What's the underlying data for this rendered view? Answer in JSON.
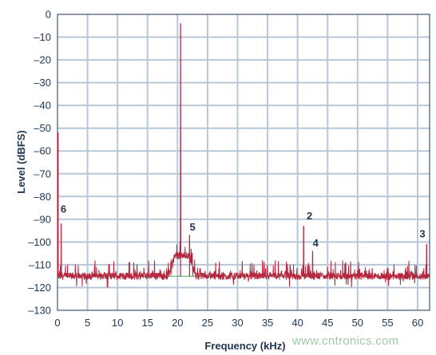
{
  "chart_data": {
    "type": "line",
    "title": "",
    "xlabel": "Frequency (kHz)",
    "ylabel": "Level (dBFS)",
    "xlim": [
      0,
      62
    ],
    "ylim": [
      -130,
      0
    ],
    "x_ticks": [
      0,
      5,
      10,
      15,
      20,
      25,
      30,
      35,
      40,
      45,
      50,
      55,
      60
    ],
    "x_tick_labels": [
      "0",
      "5",
      "10",
      "15",
      "20",
      "25",
      "30",
      "35",
      "40",
      "45",
      "50",
      "55",
      "60"
    ],
    "y_ticks": [
      0,
      -10,
      -20,
      -30,
      -40,
      -50,
      -60,
      -70,
      -80,
      -90,
      -100,
      -110,
      -120,
      -130
    ],
    "y_tick_labels": [
      "0",
      "–10",
      "–20",
      "–30",
      "–40",
      "–50",
      "–60",
      "–70",
      "–80",
      "–90",
      "–100",
      "–110",
      "–120",
      "–130"
    ],
    "grid": true,
    "noise_floor_dbfs": -115,
    "reference_line_dbfs": -115,
    "series": [
      {
        "color": "#b5253d",
        "spikes": [
          {
            "x": 0.1,
            "y": -52
          },
          {
            "x": 0.6,
            "y": -92
          },
          {
            "x": 20.5,
            "y": -4
          },
          {
            "x": 22.0,
            "y": -97
          },
          {
            "x": 41.0,
            "y": -93
          },
          {
            "x": 42.5,
            "y": -104
          },
          {
            "x": 61.5,
            "y": -101
          }
        ],
        "bump": {
          "x_start": 18.5,
          "x_end": 23.0,
          "level": -106
        }
      }
    ],
    "annotations": [
      {
        "text": "6",
        "x": 1.0,
        "y": -87
      },
      {
        "text": "5",
        "x": 22.5,
        "y": -95
      },
      {
        "text": "2",
        "x": 42.0,
        "y": -90
      },
      {
        "text": "4",
        "x": 43.0,
        "y": -102
      },
      {
        "text": "3",
        "x": 60.8,
        "y": -98
      }
    ],
    "colors": {
      "grid": "#b7c7d9",
      "axis": "#1e3550",
      "reference": "#4aa44a",
      "trace": "#b5253d"
    }
  },
  "watermark": "www.cntronics.com"
}
